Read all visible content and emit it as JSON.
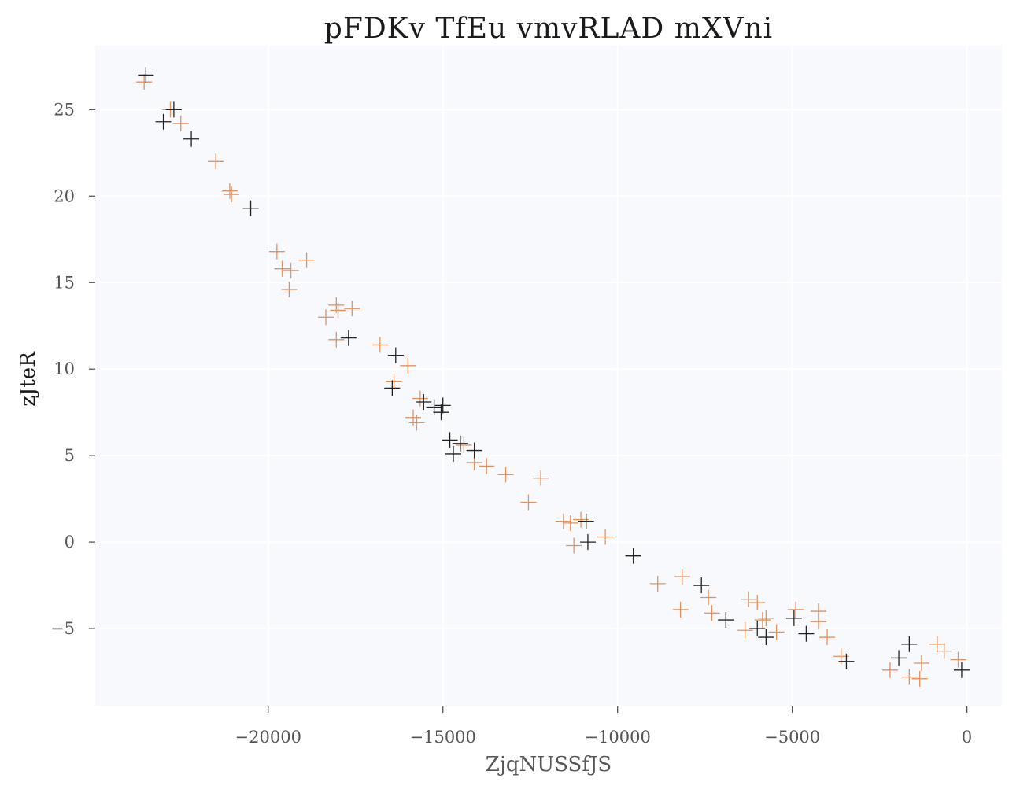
{
  "chart_data": {
    "type": "scatter",
    "title": "pFDKv TfEu vmvRLAD mXVni",
    "xlabel": "ZjqNUSSfJS",
    "ylabel": "zJteR",
    "xlim": [
      -24950,
      1000
    ],
    "ylim": [
      -9.5,
      28.7
    ],
    "xticks": [
      -20000,
      -15000,
      -10000,
      -5000,
      0
    ],
    "xtick_labels": [
      "−20000",
      "−15000",
      "−10000",
      "−5000",
      "0"
    ],
    "yticks": [
      -5,
      0,
      5,
      10,
      15,
      20,
      25
    ],
    "ytick_labels": [
      "−5",
      "0",
      "5",
      "10",
      "15",
      "20",
      "25"
    ],
    "grid": true,
    "background": "#f8f9fd",
    "marker": "+",
    "series": [
      {
        "color": "#222222",
        "points": [
          [
            -23500,
            27.0
          ],
          [
            -22700,
            25.0
          ],
          [
            -23000,
            24.3
          ],
          [
            -22200,
            23.3
          ],
          [
            -20500,
            19.3
          ],
          [
            -17700,
            11.8
          ],
          [
            -16350,
            10.8
          ],
          [
            -16450,
            8.9
          ],
          [
            -15550,
            8.1
          ],
          [
            -15250,
            7.8
          ],
          [
            -15000,
            7.9
          ],
          [
            -15050,
            7.5
          ],
          [
            -14800,
            5.9
          ],
          [
            -14500,
            5.7
          ],
          [
            -14700,
            5.1
          ],
          [
            -14100,
            5.3
          ],
          [
            -10900,
            1.2
          ],
          [
            -10850,
            0.0
          ],
          [
            -9550,
            -0.8
          ],
          [
            -7600,
            -2.5
          ],
          [
            -6900,
            -4.5
          ],
          [
            -6000,
            -5.0
          ],
          [
            -5750,
            -5.5
          ],
          [
            -4950,
            -4.4
          ],
          [
            -4600,
            -5.3
          ],
          [
            -3450,
            -6.9
          ],
          [
            -1950,
            -6.7
          ],
          [
            -1650,
            -5.9
          ],
          [
            -150,
            -7.4
          ]
        ]
      },
      {
        "color": "#e0925f",
        "points": [
          [
            -23550,
            26.6
          ],
          [
            -22800,
            25.0
          ],
          [
            -22500,
            24.2
          ],
          [
            -21500,
            22.0
          ],
          [
            -21100,
            20.3
          ],
          [
            -21050,
            20.1
          ],
          [
            -19750,
            16.8
          ],
          [
            -19600,
            15.8
          ],
          [
            -19350,
            15.7
          ],
          [
            -19400,
            14.6
          ],
          [
            -18900,
            16.3
          ],
          [
            -18350,
            13.0
          ],
          [
            -18050,
            13.7
          ],
          [
            -18000,
            13.4
          ],
          [
            -17600,
            13.5
          ],
          [
            -18050,
            11.7
          ],
          [
            -16800,
            11.4
          ],
          [
            -16000,
            10.2
          ],
          [
            -16400,
            9.3
          ],
          [
            -15650,
            8.3
          ],
          [
            -15850,
            7.2
          ],
          [
            -15750,
            6.9
          ],
          [
            -14400,
            5.6
          ],
          [
            -14100,
            4.6
          ],
          [
            -13750,
            4.4
          ],
          [
            -13200,
            3.9
          ],
          [
            -12200,
            3.7
          ],
          [
            -12550,
            2.3
          ],
          [
            -11550,
            1.2
          ],
          [
            -11350,
            1.1
          ],
          [
            -11050,
            1.3
          ],
          [
            -11250,
            -0.2
          ],
          [
            -10350,
            0.3
          ],
          [
            -8850,
            -2.4
          ],
          [
            -8150,
            -2.0
          ],
          [
            -8200,
            -3.9
          ],
          [
            -7400,
            -3.2
          ],
          [
            -7300,
            -4.1
          ],
          [
            -6250,
            -3.3
          ],
          [
            -6000,
            -3.5
          ],
          [
            -6350,
            -5.1
          ],
          [
            -5850,
            -4.5
          ],
          [
            -5750,
            -4.4
          ],
          [
            -5450,
            -5.2
          ],
          [
            -4900,
            -3.9
          ],
          [
            -4250,
            -4.0
          ],
          [
            -4250,
            -4.6
          ],
          [
            -4000,
            -5.5
          ],
          [
            -3600,
            -6.6
          ],
          [
            -2200,
            -7.4
          ],
          [
            -1650,
            -7.8
          ],
          [
            -1300,
            -7.0
          ],
          [
            -1350,
            -7.9
          ],
          [
            -850,
            -5.9
          ],
          [
            -650,
            -6.3
          ],
          [
            -250,
            -6.8
          ]
        ]
      }
    ]
  }
}
